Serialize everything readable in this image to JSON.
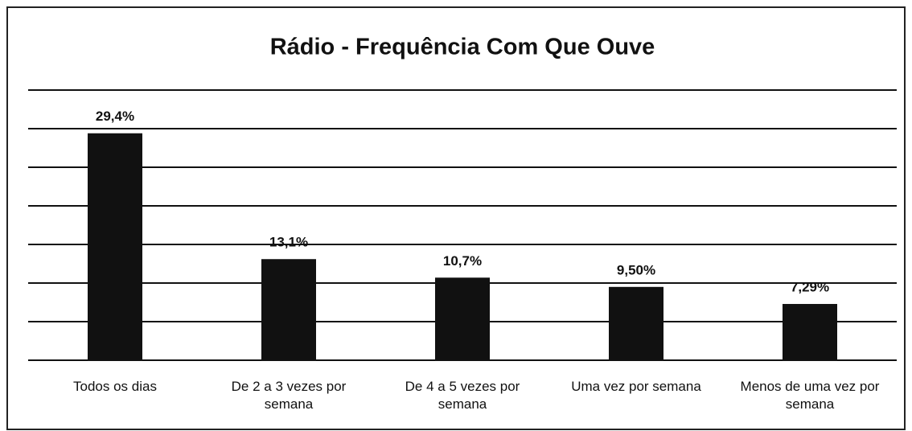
{
  "chart_data": {
    "type": "bar",
    "title": "Rádio - Frequência Com Que Ouve",
    "categories": [
      "Todos os dias",
      "De 2 a 3 vezes por semana",
      "De 4 a 5 vezes por semana",
      "Uma vez por semana",
      "Menos de uma vez por semana"
    ],
    "values": [
      29.4,
      13.1,
      10.7,
      9.5,
      7.29
    ],
    "value_labels": [
      "29,4%",
      "13,1%",
      "10,7%",
      "9,50%",
      "7,29%"
    ],
    "color": "#111111",
    "ylim": [
      0,
      35
    ],
    "yticks": [
      0,
      5,
      10,
      15,
      20,
      25,
      30,
      35
    ],
    "grid": true
  }
}
